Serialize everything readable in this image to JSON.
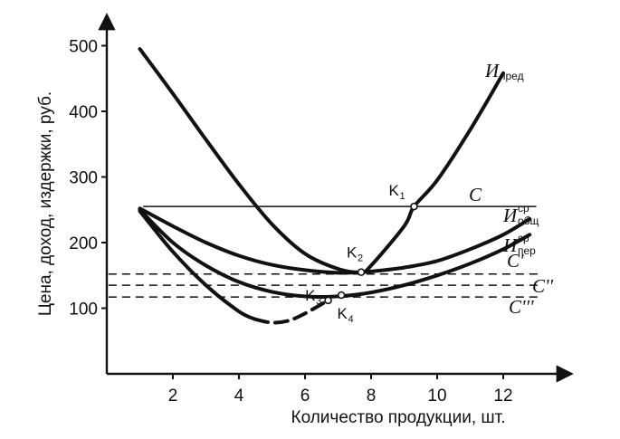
{
  "chart_data": {
    "type": "line",
    "title": "",
    "xlabel": "Количество продукции, шт.",
    "ylabel": "Цена, доход, издержки, руб.",
    "xlim": [
      0,
      14
    ],
    "ylim": [
      0,
      550
    ],
    "x_ticks": [
      2,
      4,
      6,
      8,
      10,
      12
    ],
    "y_ticks": [
      100,
      200,
      300,
      400,
      500
    ],
    "grid": false,
    "series": [
      {
        "name": "Ипред",
        "label_main": "И",
        "label_sub": "пред",
        "style": "solid-thick",
        "x": [
          1,
          2,
          3,
          4,
          5,
          6,
          7,
          7.7,
          8,
          9,
          9.3,
          10,
          11,
          12
        ],
        "y": [
          495,
          427,
          357,
          289,
          228,
          183,
          160,
          155,
          165,
          225,
          255,
          295,
          372,
          458
        ]
      },
      {
        "name": "Иср общ",
        "label_main": "И",
        "label_sup": "ср",
        "label_sub": "общ",
        "style": "solid-thick",
        "x": [
          1,
          2,
          3,
          4,
          5,
          6,
          7,
          7.7,
          8,
          9,
          10,
          11,
          12,
          12.8
        ],
        "y": [
          252,
          225,
          200,
          180,
          166,
          158,
          154,
          155,
          156,
          162,
          172,
          190,
          212,
          236
        ]
      },
      {
        "name": "Иср пер",
        "label_main": "И",
        "label_sup": "ср",
        "label_sub": "пер",
        "style": "solid-thick",
        "x": [
          1,
          2,
          3,
          4,
          5,
          6,
          7,
          8,
          9,
          10,
          11,
          12,
          12.8
        ],
        "y": [
          250,
          200,
          165,
          140,
          125,
          118,
          118,
          124,
          135,
          150,
          168,
          190,
          212
        ]
      },
      {
        "name": "lower curve",
        "style": "solid-then-dashed",
        "x": [
          1,
          2,
          3,
          4,
          4.5,
          5,
          5.5,
          6,
          6.7
        ],
        "y": [
          248,
          186,
          135,
          95,
          83,
          78,
          81,
          92,
          112
        ]
      }
    ],
    "price_lines": [
      {
        "label": "C",
        "y": 255,
        "style": "solid"
      },
      {
        "label": "C'",
        "y": 152,
        "style": "dashed"
      },
      {
        "label": "C''",
        "y": 135,
        "style": "dashed"
      },
      {
        "label": "C'''",
        "y": 117,
        "style": "dashed"
      }
    ],
    "points": [
      {
        "label_main": "K",
        "label_sub": "1",
        "x": 9.3,
        "y": 255
      },
      {
        "label_main": "K",
        "label_sub": "2",
        "x": 7.7,
        "y": 155
      },
      {
        "label_main": "K",
        "label_sub": "3",
        "x": 7.1,
        "y": 120
      },
      {
        "label_main": "K",
        "label_sub": "4",
        "x": 6.7,
        "y": 112
      }
    ]
  }
}
